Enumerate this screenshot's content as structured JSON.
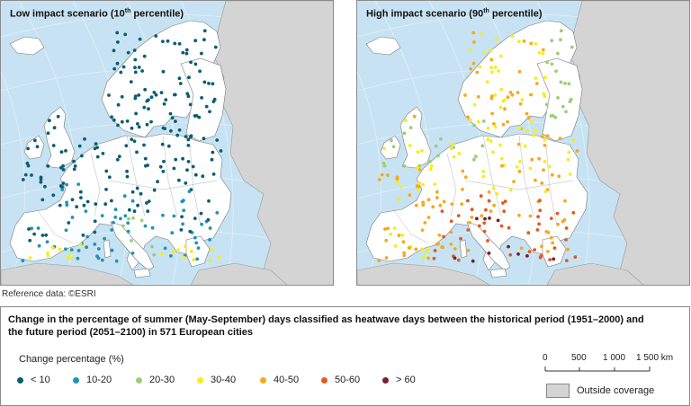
{
  "panels": {
    "left": {
      "title_main": "Low impact scenario (10",
      "title_sup": "th",
      "title_end": " percentile)"
    },
    "right": {
      "title_main": "High impact scenario (90",
      "title_sup": "th",
      "title_end": " percentile)"
    }
  },
  "reference": "Reference data: ©ESRI",
  "legend": {
    "title": "Change in the percentage of summer (May-September) days classified as heatwave days between the historical period (1951–2000) and the future period (2051–2100) in 571 European cities",
    "subtitle": "Change percentage (%)",
    "classes": [
      {
        "label": "< 10",
        "color": "#0b5d72"
      },
      {
        "label": "10-20",
        "color": "#1f93b6"
      },
      {
        "label": "20-30",
        "color": "#9bcd7a"
      },
      {
        "label": "30-40",
        "color": "#f5ee1c"
      },
      {
        "label": "40-50",
        "color": "#f7a81c"
      },
      {
        "label": "50-60",
        "color": "#e05a22"
      },
      {
        "label": "> 60",
        "color": "#7a1f2b"
      }
    ],
    "scale": [
      "0",
      "500",
      "1 000",
      "1 500 km"
    ],
    "outside_coverage": "Outside coverage"
  },
  "colors": {
    "sea": "#c7e3f3",
    "covered_land": "#ffffff",
    "outside_land": "#d4d4d4",
    "graticule": "#e8f3fa"
  }
}
